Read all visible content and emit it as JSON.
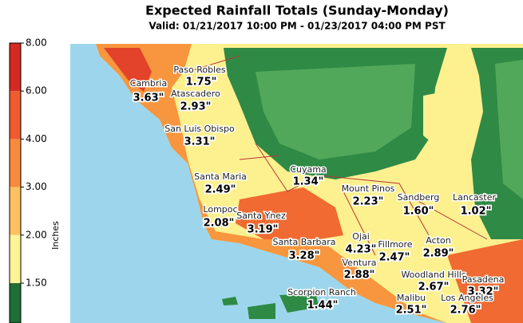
{
  "header": {
    "title": "Expected Rainfall Totals (Sunday-Monday)",
    "subtitle": "Valid: 01/21/2017 10:00 PM - 01/23/2017 04:00 PM PST"
  },
  "colorbar": {
    "label": "Inches",
    "ticks": [
      {
        "value": 8,
        "label": "8.00"
      },
      {
        "value": 6,
        "label": "6.00"
      },
      {
        "value": 4,
        "label": "4.00"
      },
      {
        "value": 3,
        "label": "3.00"
      },
      {
        "value": 2,
        "label": "2.00"
      },
      {
        "value": 1.5,
        "label": "1.50"
      }
    ],
    "colors": [
      "#d42a22",
      "#ef5a2e",
      "#f88a3c",
      "#fcc262",
      "#fdf495",
      "#1f6e35"
    ]
  },
  "locations": [
    {
      "name": "Paso Robles",
      "amount": "1.75\""
    },
    {
      "name": "Cambria",
      "amount": "3.63\""
    },
    {
      "name": "Atascadero",
      "amount": "2.93\""
    },
    {
      "name": "San Luis Obispo",
      "amount": "3.31\""
    },
    {
      "name": "Santa Maria",
      "amount": "2.49\""
    },
    {
      "name": "Lompoc",
      "amount": "2.08\""
    },
    {
      "name": "Santa Ynez",
      "amount": "3.19\""
    },
    {
      "name": "Santa Barbara",
      "amount": "3.28\""
    },
    {
      "name": "Cuyama",
      "amount": "1.34\""
    },
    {
      "name": "Mount Pinos",
      "amount": "2.23\""
    },
    {
      "name": "Sandberg",
      "amount": "1.60\""
    },
    {
      "name": "Lancaster",
      "amount": "1.02\""
    },
    {
      "name": "Ojai",
      "amount": "4.23\""
    },
    {
      "name": "Fillmore",
      "amount": "2.47\""
    },
    {
      "name": "Ventura",
      "amount": "2.88\""
    },
    {
      "name": "Acton",
      "amount": "2.89\""
    },
    {
      "name": "Woodland Hills",
      "amount": "2.67\""
    },
    {
      "name": "Pasadena",
      "amount": "3.32\""
    },
    {
      "name": "Scorpion Ranch",
      "amount": "1.44\""
    },
    {
      "name": "Malibu",
      "amount": "2.51\""
    },
    {
      "name": "Los Angeles",
      "amount": "2.76\""
    }
  ]
}
